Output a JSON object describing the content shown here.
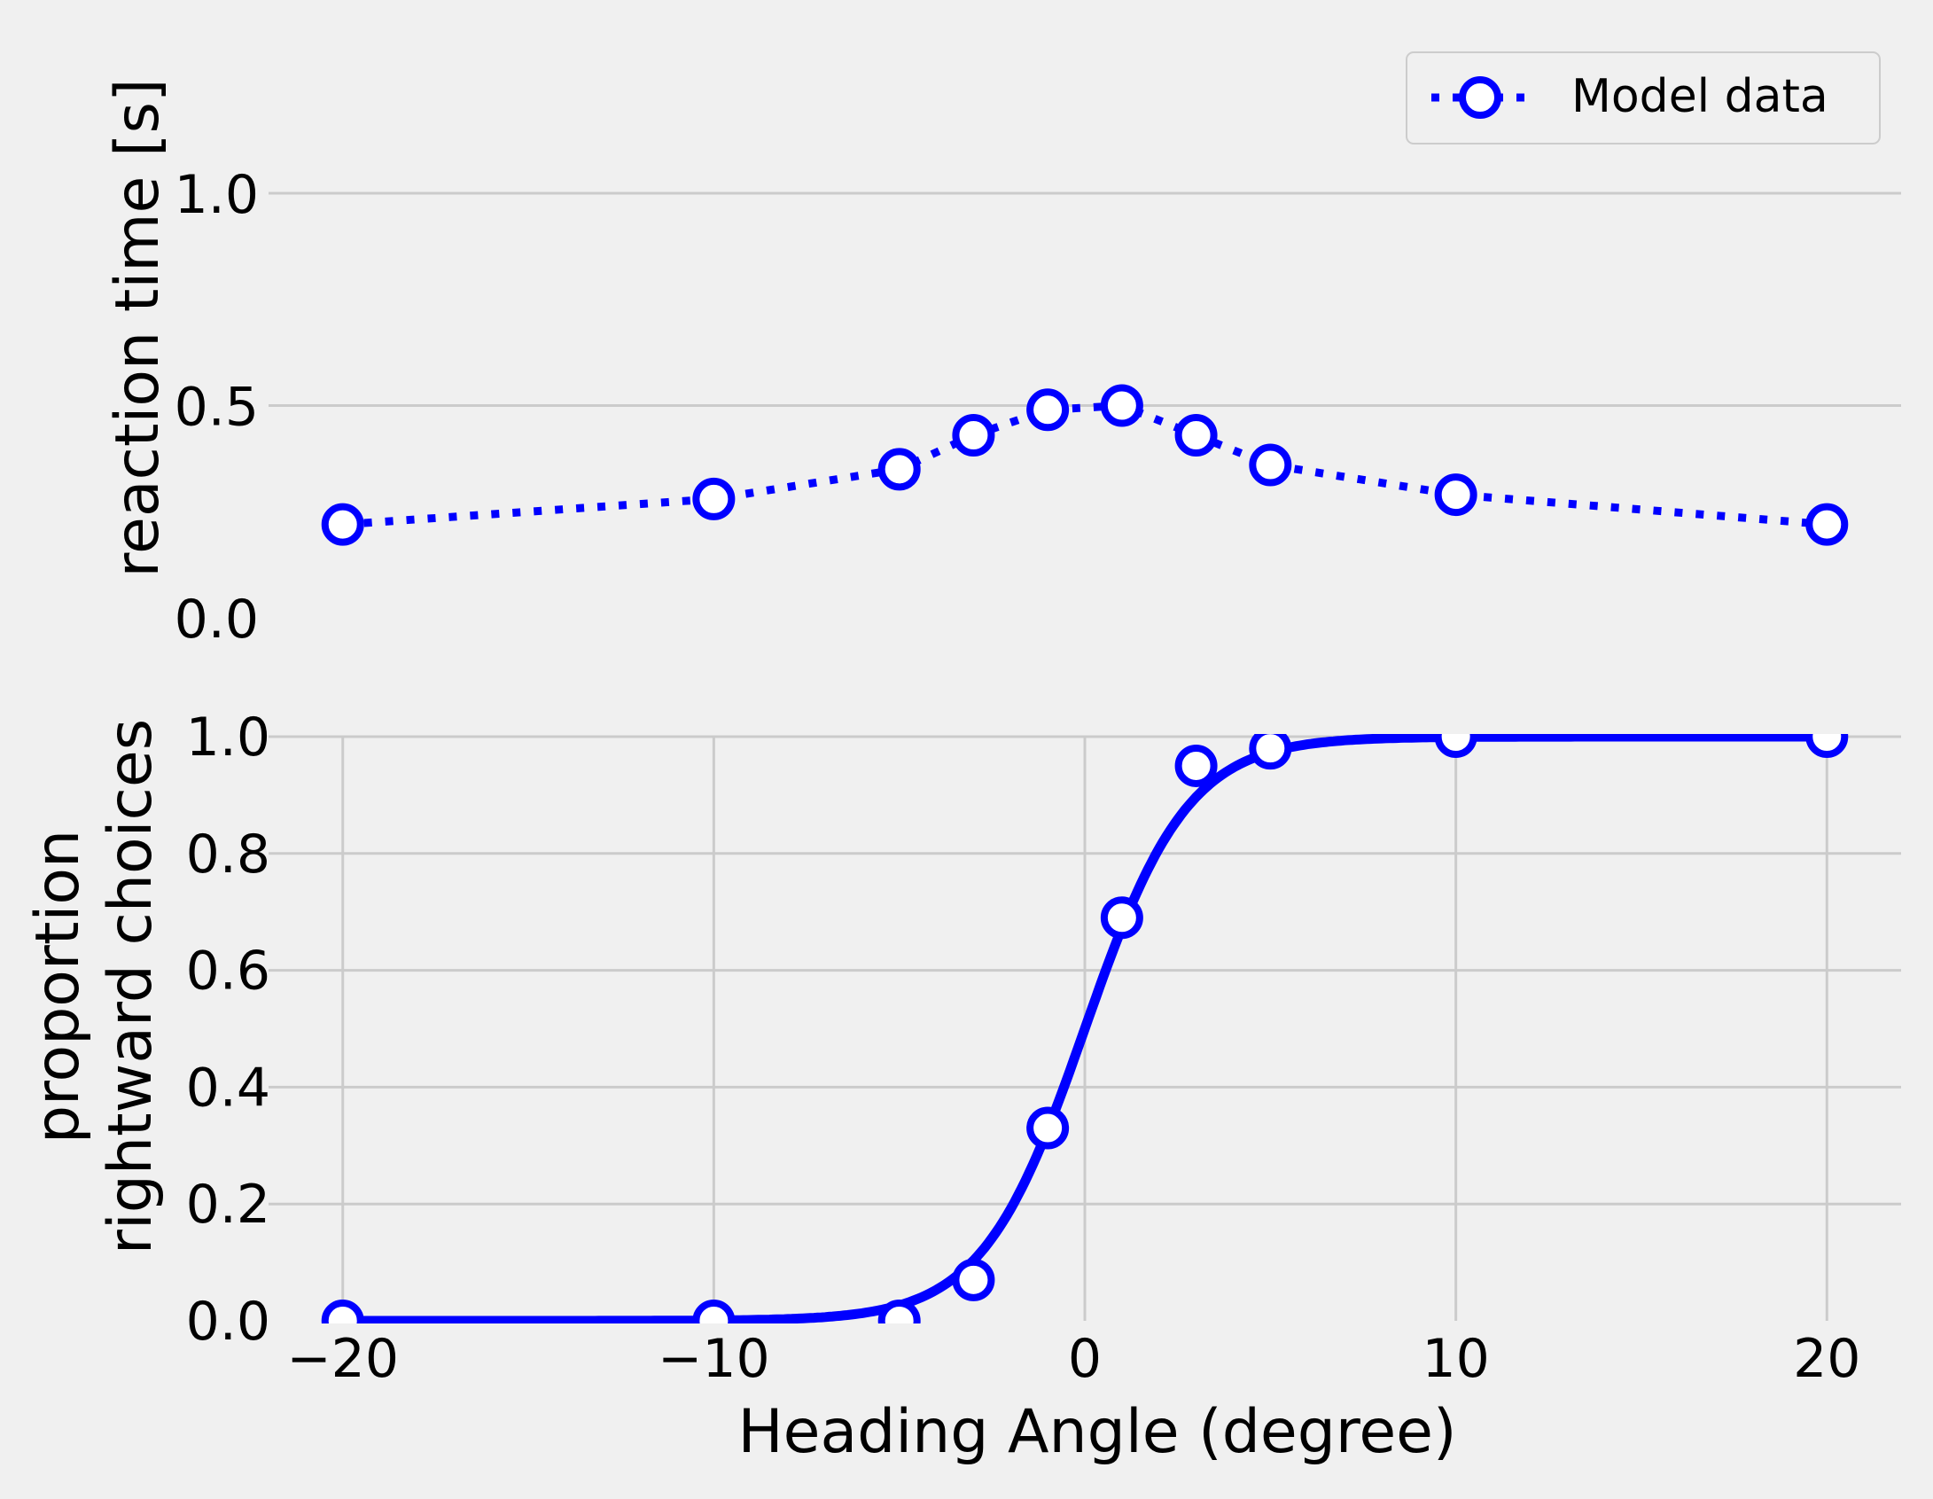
{
  "chart_data": [
    {
      "type": "line",
      "ylabel": "reaction time [s]",
      "x": [
        -20,
        -10,
        -5,
        -3,
        -1,
        1,
        3,
        5,
        10,
        20
      ],
      "series": [
        {
          "name": "Model data",
          "values": [
            0.22,
            0.28,
            0.35,
            0.43,
            0.49,
            0.5,
            0.43,
            0.36,
            0.29,
            0.22
          ],
          "color": "#0000ff",
          "style": "dotted line with open circle markers"
        }
      ],
      "xlim": [
        -22,
        22
      ],
      "ylim": [
        0.0,
        1.3
      ],
      "yticks": [
        "0.0",
        "0.5",
        "1.0"
      ],
      "grid": "horizontal",
      "legend": "top-right"
    },
    {
      "type": "line",
      "xlabel": "Heading Angle (degree)",
      "ylabel_lines": [
        "proportion",
        "rightward choices"
      ],
      "x": [
        -20,
        -10,
        -5,
        -3,
        -1,
        1,
        3,
        5,
        10,
        20
      ],
      "points": [
        0.0,
        0.0,
        0.0,
        0.07,
        0.33,
        0.69,
        0.95,
        0.98,
        1.0,
        1.0
      ],
      "fit_curve": {
        "kind": "logistic",
        "center": 0.0,
        "slope": 0.72,
        "color": "#0000ff"
      },
      "marker_color": "#0000ff",
      "xlim": [
        -22,
        22
      ],
      "ylim": [
        0.0,
        1.0
      ],
      "xticks": [
        "−20",
        "−10",
        "0",
        "10",
        "20"
      ],
      "xtick_values": [
        -20,
        -10,
        0,
        10,
        20
      ],
      "yticks": [
        "0.0",
        "0.2",
        "0.4",
        "0.6",
        "0.8",
        "1.0"
      ],
      "grid": "both"
    }
  ]
}
